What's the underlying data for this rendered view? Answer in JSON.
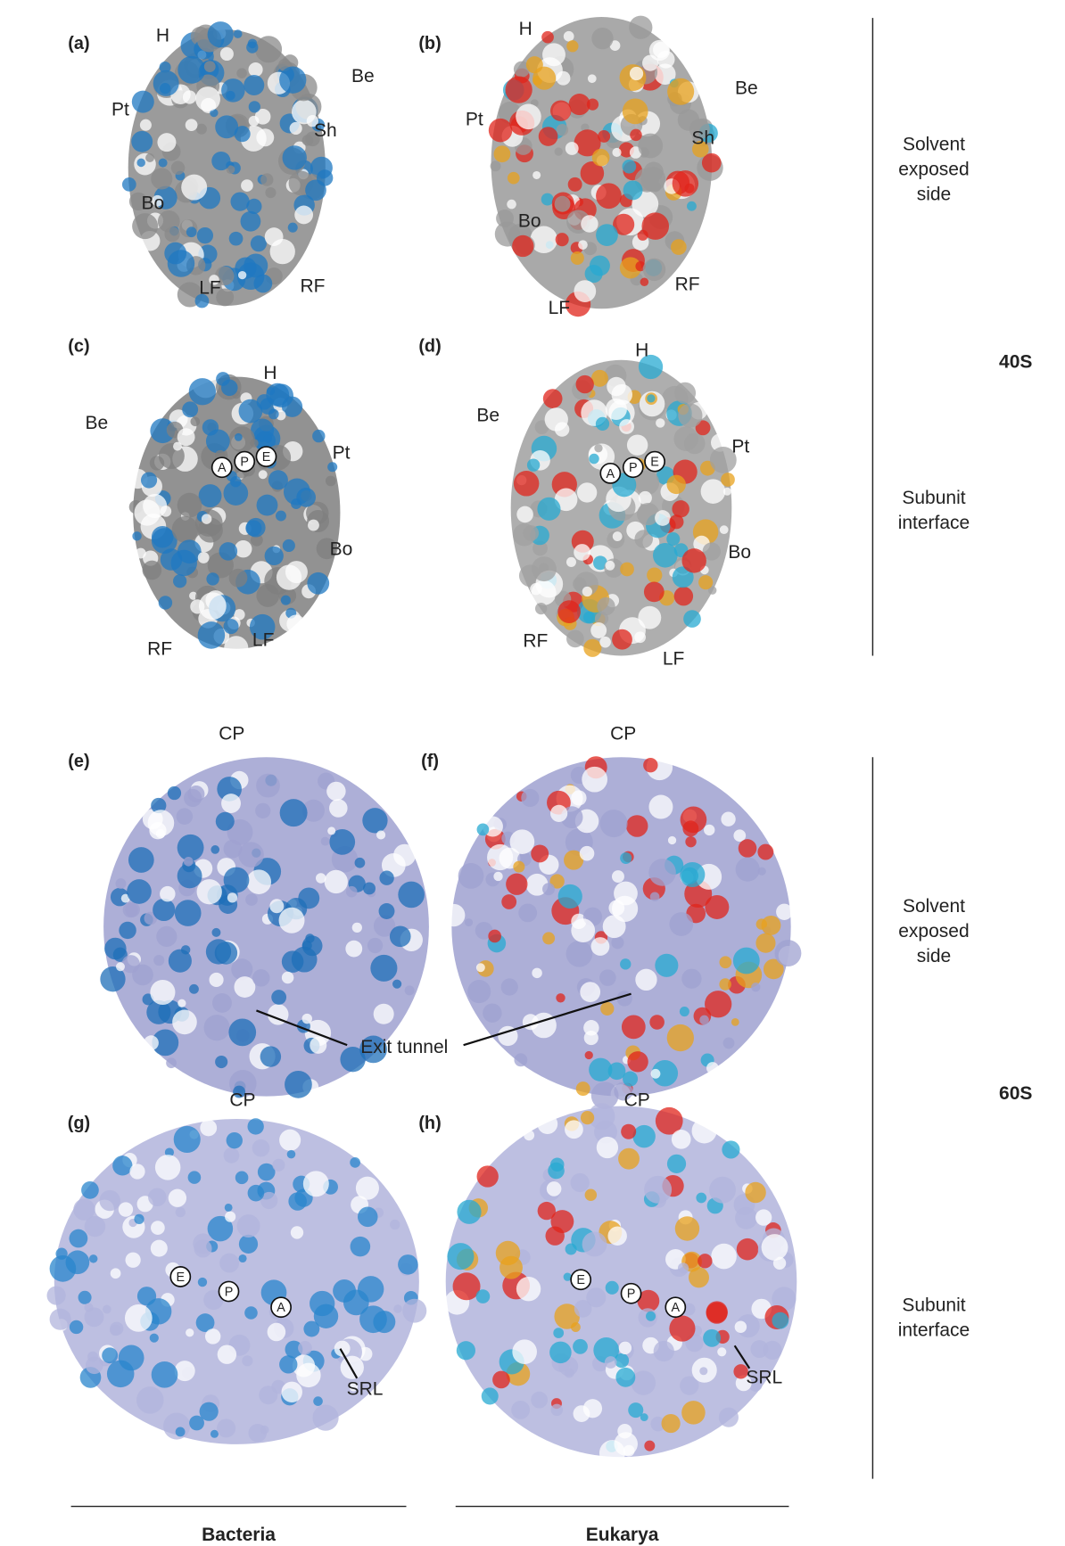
{
  "panels": [
    {
      "label": "(a)",
      "annotations": [
        "H",
        "Be",
        "Pt",
        "Sh",
        "Bo",
        "LF",
        "RF"
      ],
      "sites": []
    },
    {
      "label": "(b)",
      "annotations": [
        "H",
        "Be",
        "Pt",
        "Sh",
        "Bo",
        "LF",
        "RF"
      ],
      "sites": []
    },
    {
      "label": "(c)",
      "annotations": [
        "H",
        "Be",
        "Pt",
        "Bo",
        "RF",
        "LF"
      ],
      "sites": [
        "A",
        "P",
        "E"
      ]
    },
    {
      "label": "(d)",
      "annotations": [
        "H",
        "Be",
        "Pt",
        "Bo",
        "RF",
        "LF"
      ],
      "sites": [
        "A",
        "P",
        "E"
      ]
    },
    {
      "label": "(e)",
      "annotations": [
        "CP"
      ],
      "sites": []
    },
    {
      "label": "(f)",
      "annotations": [
        "CP"
      ],
      "sites": []
    },
    {
      "label": "(g)",
      "annotations": [
        "CP",
        "SRL"
      ],
      "sites": [
        "E",
        "P",
        "A"
      ]
    },
    {
      "label": "(h)",
      "annotations": [
        "CP",
        "SRL"
      ],
      "sites": [
        "E",
        "P",
        "A"
      ]
    }
  ],
  "tunnel_label": "Exit tunnel",
  "subunits": [
    {
      "name": "40S",
      "views": [
        "Solvent\nexposed\nside",
        "Subunit\ninterface"
      ]
    },
    {
      "name": "60S",
      "views": [
        "Solvent\nexposed\nside",
        "Subunit\ninterface"
      ]
    }
  ],
  "columns": [
    "Bacteria",
    "Eukarya"
  ]
}
